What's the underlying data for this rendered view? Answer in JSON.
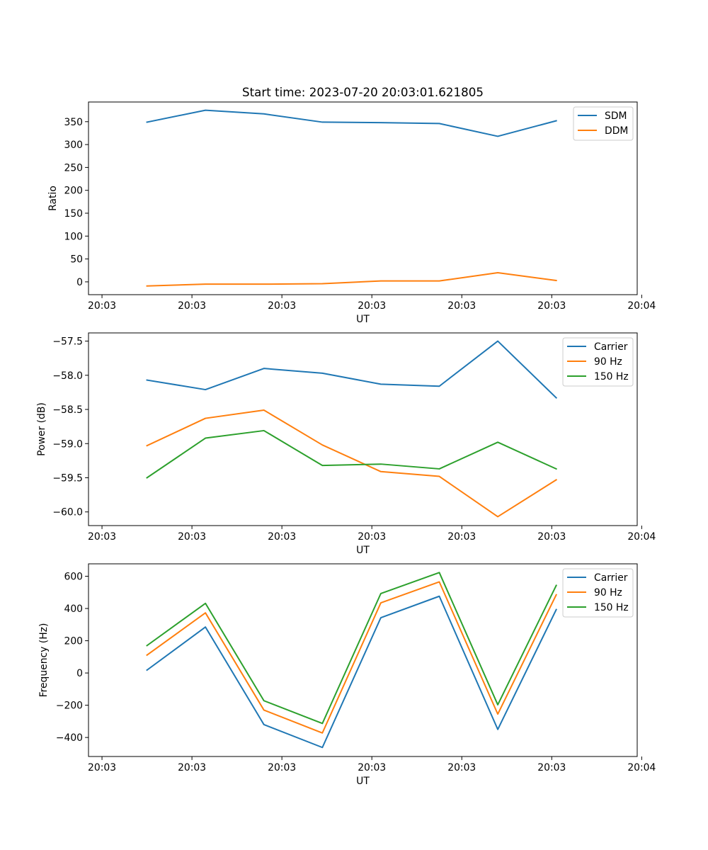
{
  "title": "Start time: 2023-07-20 20:03:01.621805",
  "chart_data": [
    {
      "type": "line",
      "title": "Start time: 2023-07-20 20:03:01.621805",
      "xlabel": "UT",
      "ylabel": "Ratio",
      "x": [
        0.5,
        1.15,
        1.8,
        2.45,
        3.1,
        3.75,
        4.4,
        5.05
      ],
      "xlim": [
        -0.15,
        5.95
      ],
      "ylim": [
        -28,
        393
      ],
      "yticks": [
        0,
        50,
        100,
        150,
        200,
        250,
        300,
        350
      ],
      "xticks": [
        0,
        1,
        2,
        3,
        4,
        5,
        6
      ],
      "xtick_labels": [
        "20:03",
        "20:03",
        "20:03",
        "20:03",
        "20:03",
        "20:03",
        "20:04"
      ],
      "legend": "top-right",
      "series": [
        {
          "name": "SDM",
          "color": "#1f77b4",
          "values": [
            349,
            375,
            367,
            349,
            348,
            346,
            318,
            352
          ]
        },
        {
          "name": "DDM",
          "color": "#ff7f0e",
          "values": [
            -9,
            -5,
            -5,
            -4,
            2,
            2,
            20,
            3
          ]
        }
      ]
    },
    {
      "type": "line",
      "title": "",
      "xlabel": "UT",
      "ylabel": "Power (dB)",
      "x": [
        0.5,
        1.15,
        1.8,
        2.45,
        3.1,
        3.75,
        4.4,
        5.05
      ],
      "xlim": [
        -0.15,
        5.95
      ],
      "ylim": [
        -60.2,
        -57.38
      ],
      "yticks": [
        -60.0,
        -59.5,
        -59.0,
        -58.5,
        -58.0,
        -57.5
      ],
      "ytick_labels": [
        "−60.0",
        "−59.5",
        "−59.0",
        "−58.5",
        "−58.0",
        "−57.5"
      ],
      "xticks": [
        0,
        1,
        2,
        3,
        4,
        5,
        6
      ],
      "xtick_labels": [
        "20:03",
        "20:03",
        "20:03",
        "20:03",
        "20:03",
        "20:03",
        "20:04"
      ],
      "legend": "top-right",
      "series": [
        {
          "name": "Carrier",
          "color": "#1f77b4",
          "values": [
            -58.07,
            -58.21,
            -57.9,
            -57.97,
            -58.13,
            -58.16,
            -57.5,
            -58.33
          ]
        },
        {
          "name": "90 Hz",
          "color": "#ff7f0e",
          "values": [
            -59.03,
            -58.63,
            -58.51,
            -59.02,
            -59.41,
            -59.48,
            -60.07,
            -59.53
          ]
        },
        {
          "name": "150 Hz",
          "color": "#2ca02c",
          "values": [
            -59.5,
            -58.92,
            -58.81,
            -59.32,
            -59.3,
            -59.37,
            -58.98,
            -59.37
          ]
        }
      ]
    },
    {
      "type": "line",
      "title": "",
      "xlabel": "UT",
      "ylabel": "Frequency (Hz)",
      "x": [
        0.5,
        1.15,
        1.8,
        2.45,
        3.1,
        3.75,
        4.4,
        5.05
      ],
      "xlim": [
        -0.15,
        5.95
      ],
      "ylim": [
        -518,
        677
      ],
      "yticks": [
        -400,
        -200,
        0,
        200,
        400,
        600
      ],
      "ytick_labels": [
        "−400",
        "−200",
        "0",
        "200",
        "400",
        "600"
      ],
      "xticks": [
        0,
        1,
        2,
        3,
        4,
        5,
        6
      ],
      "xtick_labels": [
        "20:03",
        "20:03",
        "20:03",
        "20:03",
        "20:03",
        "20:03",
        "20:04"
      ],
      "legend": "top-right",
      "series": [
        {
          "name": "Carrier",
          "color": "#1f77b4",
          "values": [
            18,
            285,
            -320,
            -462,
            343,
            476,
            -350,
            393
          ]
        },
        {
          "name": "90 Hz",
          "color": "#ff7f0e",
          "values": [
            111,
            373,
            -230,
            -372,
            435,
            565,
            -255,
            485
          ]
        },
        {
          "name": "150 Hz",
          "color": "#2ca02c",
          "values": [
            170,
            432,
            -172,
            -313,
            493,
            623,
            -197,
            543
          ]
        }
      ]
    }
  ]
}
